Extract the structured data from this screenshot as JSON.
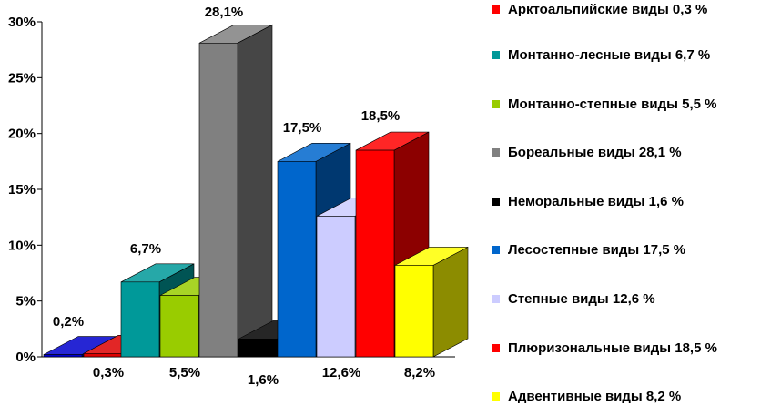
{
  "chart_data": {
    "type": "bar",
    "style": "3d-column",
    "y_axis": {
      "ticks": [
        "0%",
        "5%",
        "10%",
        "15%",
        "20%",
        "25%",
        "30%"
      ],
      "range": [
        0,
        30
      ]
    },
    "bars": [
      {
        "name": "Арктоальпийские виды",
        "value": 0.2,
        "label": "0,2%",
        "color": "#0000cc"
      },
      {
        "name": "Арктоальпийские виды",
        "value": 0.3,
        "label": "0,3%",
        "color": "#dd0000"
      },
      {
        "name": "Монтанно-лесные виды",
        "value": 6.7,
        "label": "6,7%",
        "color": "#009999"
      },
      {
        "name": "Монтанно-степные виды",
        "value": 5.5,
        "label": "5,5%",
        "color": "#99cc00"
      },
      {
        "name": "Бореальные виды",
        "value": 28.1,
        "label": "28,1%",
        "color": "#808080"
      },
      {
        "name": "Неморальные виды",
        "value": 1.6,
        "label": "1,6%",
        "color": "#000000"
      },
      {
        "name": "Лесостепные виды",
        "value": 17.5,
        "label": "17,5%",
        "color": "#0066cc"
      },
      {
        "name": "Степные виды",
        "value": 12.6,
        "label": "12,6%",
        "color": "#ccccff"
      },
      {
        "name": "Плюризональные виды",
        "value": 18.5,
        "label": "18,5%",
        "color": "#ff0000"
      },
      {
        "name": "Адвентивные виды",
        "value": 8.2,
        "label": "8,2%",
        "color": "#ffff00"
      }
    ],
    "legend_position": "right",
    "legend": [
      {
        "label": "Арктоальпийские виды 0,3 %",
        "color": "#ff0000"
      },
      {
        "label": "Монтанно-лесные виды 6,7 %",
        "color": "#009999"
      },
      {
        "label": "Монтанно-степные виды 5,5 %",
        "color": "#99cc00"
      },
      {
        "label": "Бореальные виды 28,1 %",
        "color": "#808080"
      },
      {
        "label": "Неморальные виды 1,6 %",
        "color": "#000000"
      },
      {
        "label": "Лесостепные виды 17,5 %",
        "color": "#0066cc"
      },
      {
        "label": "Степные виды 12,6 %",
        "color": "#ccccff"
      },
      {
        "label": "Плюризональные виды 18,5 %",
        "color": "#ff0000"
      },
      {
        "label": "Адвентивные виды 8,2 %",
        "color": "#ffff00"
      }
    ]
  }
}
